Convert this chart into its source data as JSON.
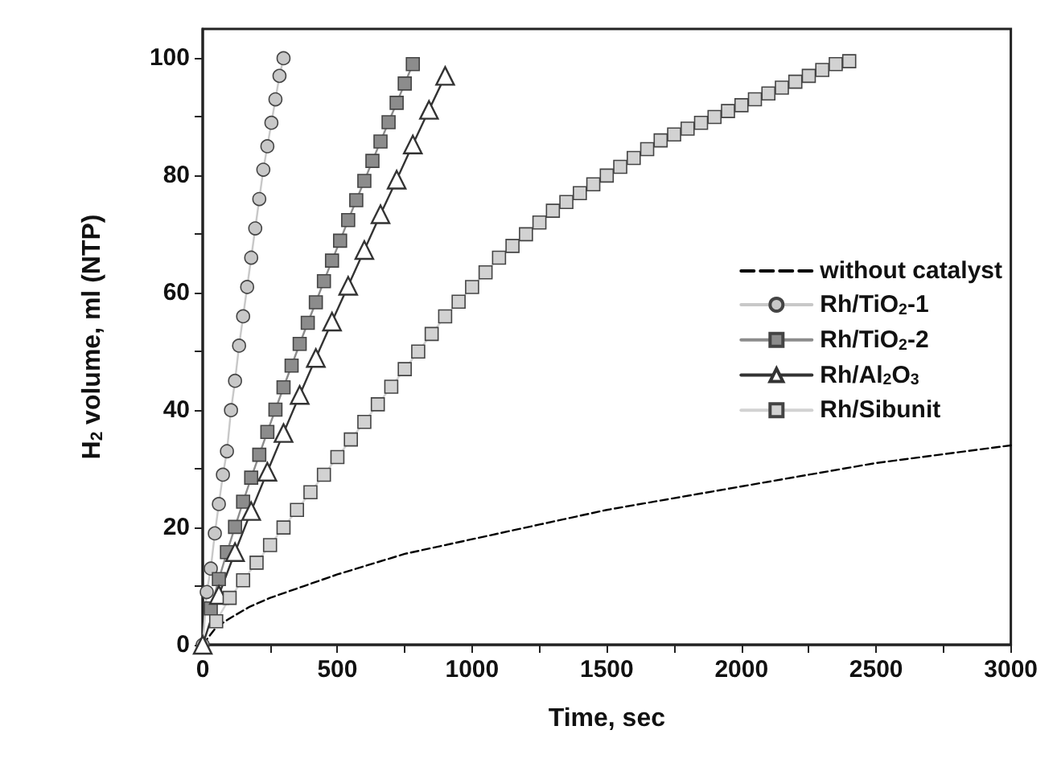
{
  "chart_data": {
    "type": "line",
    "xlabel": "Time, sec",
    "ylabel": "H$_{2}$ volume, ml (NTP)",
    "xlim": [
      0,
      3000
    ],
    "ylim": [
      0,
      105
    ],
    "xticks": [
      0,
      500,
      1000,
      1500,
      2000,
      2500,
      3000
    ],
    "yticks": [
      0,
      20,
      40,
      60,
      80,
      100
    ],
    "grid": false,
    "legend": "right",
    "series": [
      {
        "name": "without catalyst",
        "color": "#000000",
        "marker": "none",
        "line_style": "dashed",
        "x": [
          0,
          50,
          100,
          175,
          250,
          375,
          500,
          750,
          1000,
          1250,
          1500,
          1750,
          2000,
          2250,
          2500,
          2750,
          3000
        ],
        "values": [
          0,
          3,
          4.5,
          6.5,
          8,
          10,
          12,
          15.5,
          18,
          20.5,
          23,
          25,
          27,
          29,
          31,
          32.5,
          34
        ]
      },
      {
        "name": "Rh/TiO$_{2}$-1",
        "color": "#c8c8c8",
        "marker": "circle",
        "line_style": "solid",
        "x": [
          0,
          15,
          30,
          45,
          60,
          75,
          90,
          105,
          120,
          135,
          150,
          165,
          180,
          195,
          210,
          225,
          240,
          255,
          270,
          285,
          300
        ],
        "values": [
          0,
          9,
          13,
          19,
          24,
          29,
          33,
          40,
          45,
          51,
          56,
          61,
          66,
          71,
          76,
          81,
          85,
          89,
          93,
          97,
          100
        ]
      },
      {
        "name": "Rh/TiO$_{2}$-2",
        "color": "#8c8c8c",
        "marker": "square",
        "line_style": "solid",
        "x": [
          30,
          60,
          90,
          120,
          150,
          180,
          210,
          240,
          270,
          300,
          330,
          360,
          390,
          420,
          450,
          480,
          510,
          540,
          570,
          600,
          630,
          660,
          690,
          720,
          750,
          780
        ],
        "values": [
          6.2,
          11.2,
          15.8,
          20.1,
          24.4,
          28.5,
          32.4,
          36.3,
          40.1,
          43.9,
          47.6,
          51.3,
          54.9,
          58.4,
          62,
          65.5,
          68.9,
          72.4,
          75.8,
          79.1,
          82.5,
          85.8,
          89.1,
          92.4,
          95.7,
          99
        ]
      },
      {
        "name": "Rh/Al$_{2}$O$_{3}$",
        "color": "#333333",
        "marker": "triangle",
        "line_style": "solid",
        "x": [
          0,
          60,
          120,
          180,
          240,
          300,
          360,
          420,
          480,
          540,
          600,
          660,
          720,
          780,
          840,
          900
        ],
        "values": [
          0,
          8.5,
          15.8,
          22.8,
          29.5,
          36.1,
          42.6,
          48.9,
          55.1,
          61.2,
          67.3,
          73.4,
          79.3,
          85.3,
          91.2,
          97
        ]
      },
      {
        "name": "Rh/Sibunit",
        "color": "#d2d2d2",
        "marker": "square",
        "line_style": "solid",
        "x": [
          50,
          100,
          150,
          200,
          250,
          300,
          350,
          400,
          450,
          500,
          550,
          600,
          650,
          700,
          750,
          800,
          850,
          900,
          950,
          1000,
          1050,
          1100,
          1150,
          1200,
          1250,
          1300,
          1350,
          1400,
          1450,
          1500,
          1550,
          1600,
          1650,
          1700,
          1750,
          1800,
          1850,
          1900,
          1950,
          2000,
          2050,
          2100,
          2150,
          2200,
          2250,
          2300,
          2350,
          2400
        ],
        "values": [
          4,
          8,
          11,
          14,
          17,
          20,
          23,
          26,
          29,
          32,
          35,
          38,
          41,
          44,
          47,
          50,
          53,
          56,
          58.5,
          61,
          63.5,
          66,
          68,
          70,
          72,
          74,
          75.5,
          77,
          78.5,
          80,
          81.5,
          83,
          84.5,
          86,
          87,
          88,
          89,
          90,
          91,
          92,
          93,
          94,
          95,
          96,
          97,
          98,
          99,
          99.5
        ]
      }
    ]
  }
}
